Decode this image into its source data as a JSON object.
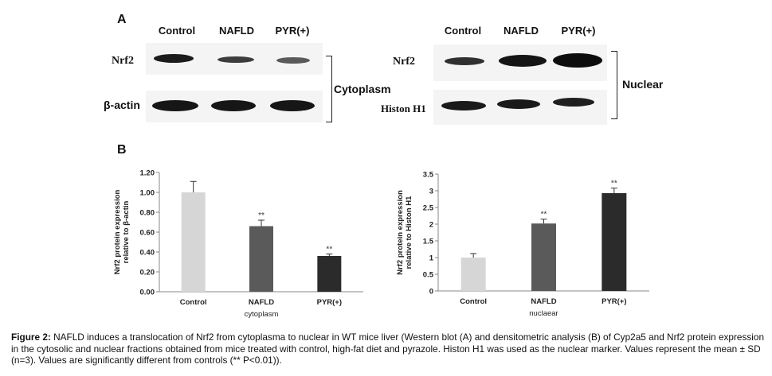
{
  "panel_a": {
    "letter": "A",
    "cyto": {
      "lanes": [
        "Control",
        "NAFLD",
        "PYR(+)"
      ],
      "row1": "Nrf2",
      "row2": "β-actin",
      "bracket": "Cytoplasm"
    },
    "nuc": {
      "lanes": [
        "Control",
        "NAFLD",
        "PYR(+)"
      ],
      "row1": "Nrf2",
      "row2": "Histon H1",
      "bracket": "Nuclear"
    }
  },
  "panel_b": {
    "letter": "B"
  },
  "chart_data": [
    {
      "type": "bar",
      "categories": [
        "Control",
        "NAFLD",
        "PYR(+)"
      ],
      "values": [
        1.0,
        0.66,
        0.36
      ],
      "errors": [
        0.11,
        0.06,
        0.02
      ],
      "significance": [
        "",
        "**",
        "**"
      ],
      "xlabel": "cytoplasm",
      "ylabel_lines": [
        "Nrf2  protein expression",
        "relative to β-actin"
      ],
      "ylim": [
        0,
        1.2
      ],
      "yticks": [
        "0.00",
        "0.20",
        "0.40",
        "0.60",
        "0.80",
        "1.00",
        "1.20"
      ],
      "colors": [
        "#d6d6d6",
        "#5a5a5a",
        "#2b2b2b"
      ]
    },
    {
      "type": "bar",
      "categories": [
        "Control",
        "NAFLD",
        "PYR(+)"
      ],
      "values": [
        1.0,
        2.02,
        2.93
      ],
      "errors": [
        0.12,
        0.13,
        0.15
      ],
      "significance": [
        "",
        "**",
        "**"
      ],
      "xlabel": "nuclaear",
      "ylabel_lines": [
        "Nrf2  protein expression",
        "relative to Histon H1"
      ],
      "ylim": [
        0,
        3.5
      ],
      "yticks": [
        "0",
        "0.5",
        "1",
        "1.5",
        "2",
        "2.5",
        "3",
        "3.5"
      ],
      "colors": [
        "#d6d6d6",
        "#5a5a5a",
        "#2b2b2b"
      ]
    }
  ],
  "caption": {
    "label": "Figure 2:",
    "text": " NAFLD induces a translocation of Nrf2 from cytoplasma to nuclear in WT mice liver (Western blot (A) and densitometric analysis (B) of Cyp2a5 and Nrf2 protein expression in the cytosolic and nuclear fractions obtained from mice treated with control, high-fat diet and pyrazole. Histon H1 was used as the nuclear marker. Values represent the mean ± SD (n=3). Values are significantly different from controls (** P<0.01))."
  },
  "colors": {
    "band": "#1a1a1a",
    "blot_bg": "#f4f4f4"
  }
}
